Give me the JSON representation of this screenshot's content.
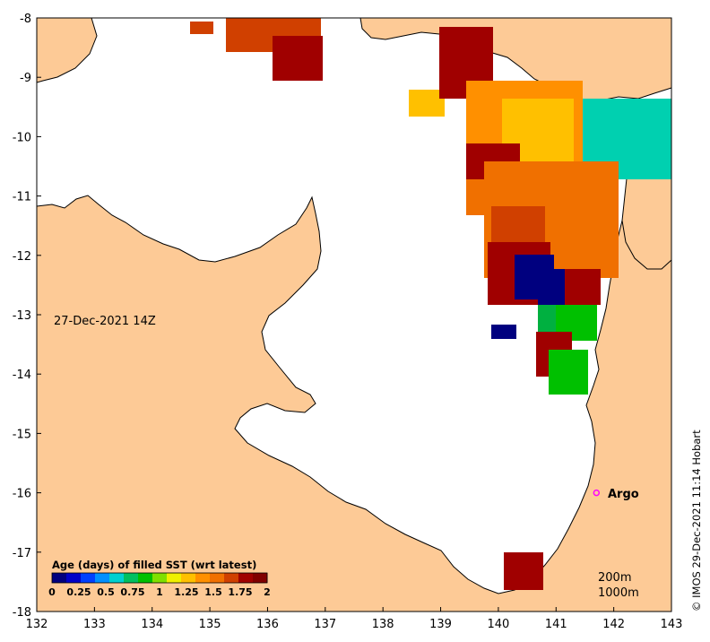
{
  "map": {
    "timestamp": "27-Dec-2021 14Z",
    "credit": "© IMOS 29-Dec-2021 11:14 Hobart",
    "x_axis": {
      "ticks": [
        "132",
        "133",
        "134",
        "135",
        "136",
        "137",
        "138",
        "139",
        "140",
        "141",
        "142",
        "143"
      ],
      "lon_range": [
        132,
        143
      ]
    },
    "y_axis": {
      "ticks": [
        "-8",
        "-9",
        "-10",
        "-11",
        "-12",
        "-13",
        "-14",
        "-15",
        "-16",
        "-17",
        "-18"
      ],
      "lat_range": [
        -18,
        -8
      ]
    },
    "colorbar": {
      "title": "Age (days) of filled SST (wrt latest)",
      "ticks": [
        "0",
        "0.25",
        "0.5",
        "0.75",
        "1",
        "1.25",
        "1.5",
        "1.75",
        "2"
      ],
      "range": [
        0,
        2
      ],
      "colors": [
        "#00007f",
        "#0000c8",
        "#0040ff",
        "#0090ff",
        "#00d0d0",
        "#00c060",
        "#00c000",
        "#80e000",
        "#f0f000",
        "#ffc000",
        "#ff9000",
        "#f07000",
        "#d04000",
        "#a00000",
        "#800000"
      ]
    },
    "depth_labels": [
      "200m",
      "1000m"
    ],
    "markers": [
      {
        "label": "Argo",
        "lon": 141.7,
        "lat": -16.0,
        "color": "#ff00ff"
      }
    ],
    "colors": {
      "land": "#fdca96",
      "sea": "#ffffff",
      "coast": "#000000"
    }
  }
}
